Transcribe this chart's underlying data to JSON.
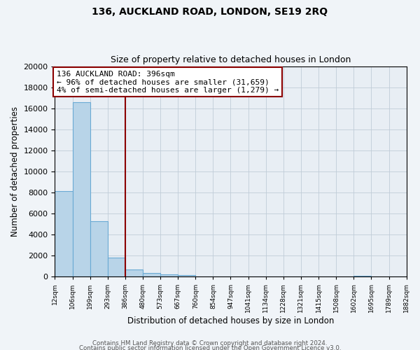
{
  "title": "136, AUCKLAND ROAD, LONDON, SE19 2RQ",
  "subtitle": "Size of property relative to detached houses in London",
  "xlabel": "Distribution of detached houses by size in London",
  "ylabel": "Number of detached properties",
  "bin_edges": [
    12,
    106,
    199,
    293,
    386,
    480,
    573,
    667,
    760,
    854,
    947,
    1041,
    1134,
    1228,
    1321,
    1415,
    1508,
    1602,
    1695,
    1789,
    1882
  ],
  "bar_heights": [
    8100,
    16600,
    5300,
    1800,
    700,
    350,
    200,
    150,
    0,
    0,
    0,
    0,
    0,
    0,
    0,
    0,
    0,
    100,
    0,
    0
  ],
  "tick_labels": [
    "12sqm",
    "106sqm",
    "199sqm",
    "293sqm",
    "386sqm",
    "480sqm",
    "573sqm",
    "667sqm",
    "760sqm",
    "854sqm",
    "947sqm",
    "1041sqm",
    "1134sqm",
    "1228sqm",
    "1321sqm",
    "1415sqm",
    "1508sqm",
    "1602sqm",
    "1695sqm",
    "1789sqm",
    "1882sqm"
  ],
  "bar_color": "#b8d4e8",
  "bar_edge_color": "#6aaad4",
  "vline_x": 386,
  "vline_color": "#8b0000",
  "ylim": [
    0,
    20000
  ],
  "yticks": [
    0,
    2000,
    4000,
    6000,
    8000,
    10000,
    12000,
    14000,
    16000,
    18000,
    20000
  ],
  "annotation_title": "136 AUCKLAND ROAD: 396sqm",
  "annotation_line1": "← 96% of detached houses are smaller (31,659)",
  "annotation_line2": "4% of semi-detached houses are larger (1,279) →",
  "annotation_box_facecolor": "#ffffff",
  "annotation_box_edgecolor": "#8b0000",
  "footer_line1": "Contains HM Land Registry data © Crown copyright and database right 2024.",
  "footer_line2": "Contains public sector information licensed under the Open Government Licence v3.0.",
  "background_color": "#f0f4f8",
  "plot_bg_color": "#e8eef4",
  "grid_color": "#c0ccd8"
}
